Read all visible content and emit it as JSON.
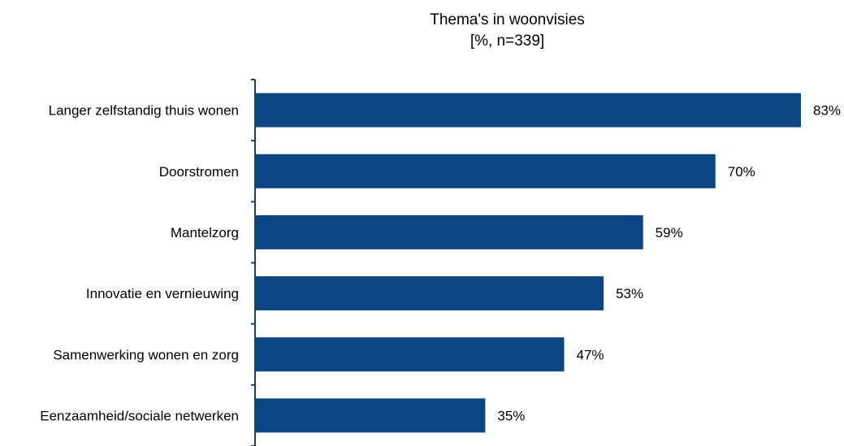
{
  "chart_data": {
    "type": "bar",
    "orientation": "horizontal",
    "title": "Thema's in woonvisies",
    "subtitle": "[%, n=339]",
    "categories": [
      "Langer zelfstandig thuis wonen",
      "Doorstromen",
      "Mantelzorg",
      "Innovatie en vernieuwing",
      "Samenwerking wonen en zorg",
      "Eenzaamheid/sociale netwerken"
    ],
    "values": [
      83,
      70,
      59,
      53,
      47,
      35
    ],
    "value_labels": [
      "83%",
      "70%",
      "59%",
      "53%",
      "47%",
      "35%"
    ],
    "unit": "%",
    "xlim": [
      0,
      83
    ],
    "bar_color": "#0b4582",
    "axis_color": "#1f3e66",
    "grid": false,
    "legend": "none"
  }
}
